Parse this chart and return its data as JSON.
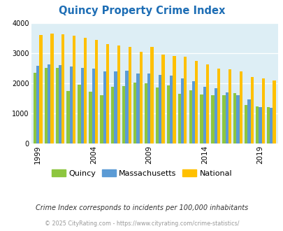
{
  "title": "Quincy Property Crime Index",
  "years": [
    1999,
    2000,
    2001,
    2002,
    2003,
    2004,
    2005,
    2006,
    2007,
    2008,
    2009,
    2010,
    2011,
    2012,
    2013,
    2014,
    2015,
    2016,
    2017,
    2018,
    2019,
    2020
  ],
  "quincy": [
    2350,
    2500,
    2500,
    1730,
    1950,
    1720,
    1600,
    1880,
    1900,
    2020,
    2000,
    1850,
    1930,
    1650,
    1760,
    1620,
    1610,
    1600,
    1670,
    1280,
    1220,
    1200
  ],
  "massachusetts": [
    2570,
    2620,
    2600,
    2560,
    2500,
    2480,
    2380,
    2400,
    2420,
    2320,
    2330,
    2280,
    2250,
    2150,
    2060,
    1870,
    1840,
    1700,
    1590,
    1450,
    1200,
    1190
  ],
  "national": [
    3610,
    3660,
    3630,
    3590,
    3520,
    3440,
    3310,
    3250,
    3200,
    3040,
    3200,
    2940,
    2900,
    2880,
    2730,
    2620,
    2490,
    2460,
    2400,
    2200,
    2160,
    2090
  ],
  "quincy_color": "#8dc63f",
  "mass_color": "#5b9bd5",
  "national_color": "#ffc000",
  "bg_color": "#ddeef5",
  "title_color": "#1e6eb5",
  "subtitle_color": "#333333",
  "footer_color": "#999999",
  "tick_label_years": [
    1999,
    2004,
    2009,
    2014,
    2019
  ],
  "ylim": [
    0,
    4000
  ],
  "yticks": [
    0,
    1000,
    2000,
    3000,
    4000
  ],
  "subtitle": "Crime Index corresponds to incidents per 100,000 inhabitants",
  "footer": "© 2025 CityRating.com - https://www.cityrating.com/crime-statistics/"
}
